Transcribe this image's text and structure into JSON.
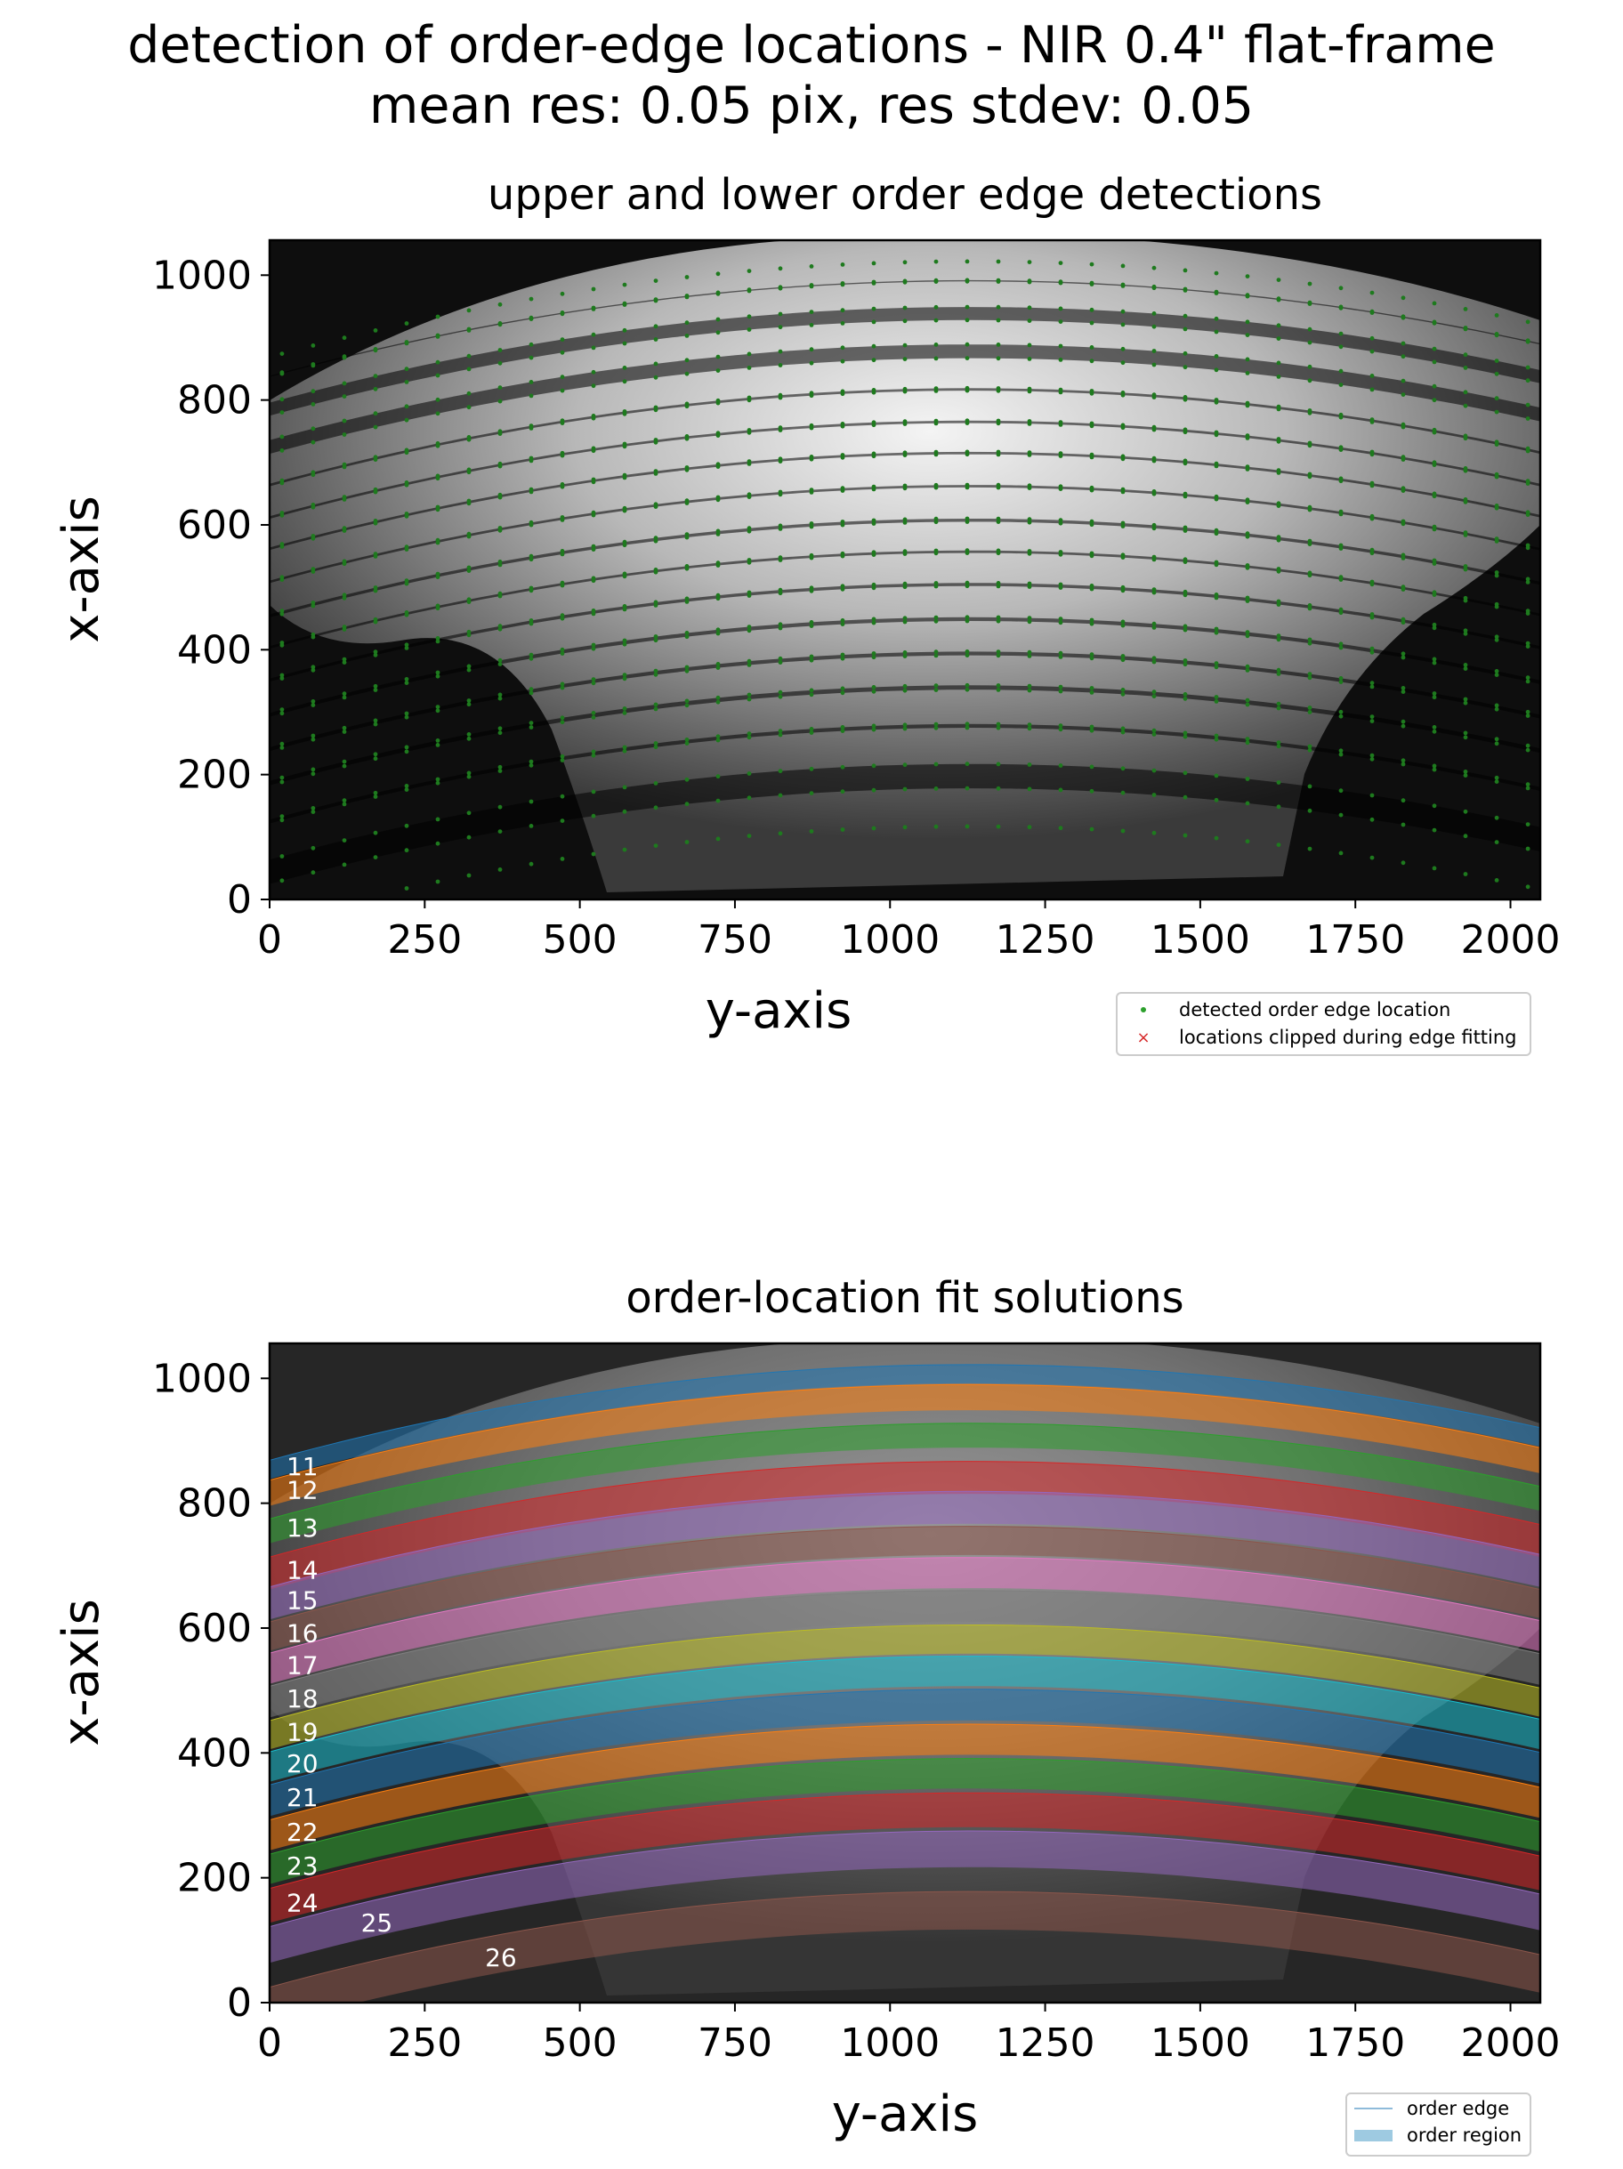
{
  "figure": {
    "title_line1": "detection of order-edge locations - NIR 0.4\" flat-frame",
    "title_line2": "mean res: 0.05 pix, res stdev: 0.05"
  },
  "chart_data": [
    {
      "type": "scatter",
      "title": "upper and lower order edge detections",
      "xlabel": "y-axis",
      "ylabel": "x-axis",
      "xlim": [
        0,
        2048
      ],
      "ylim": [
        0,
        1056
      ],
      "xticks": [
        "0",
        "250",
        "500",
        "750",
        "1000",
        "1250",
        "1500",
        "1750",
        "2000"
      ],
      "yticks": [
        "0",
        "200",
        "400",
        "600",
        "800",
        "1000"
      ],
      "background": "NIR flat-frame image (grey-scale)",
      "grid": false,
      "legend_position": "below-right",
      "legend": [
        {
          "label": "detected order edge location",
          "marker": "dot",
          "color": "#2ca02c"
        },
        {
          "label": "locations clipped during edge fitting",
          "marker": "x",
          "color": "#d62728"
        }
      ],
      "note": "detected points follow the upper and lower edges of every echelle order (orders 11-26); no clipped locations visible"
    },
    {
      "type": "area",
      "title": "order-location fit solutions",
      "xlabel": "y-axis",
      "ylabel": "x-axis",
      "xlim": [
        0,
        2048
      ],
      "ylim": [
        0,
        1056
      ],
      "xticks": [
        "0",
        "250",
        "500",
        "750",
        "1000",
        "1250",
        "1500",
        "1750",
        "2000"
      ],
      "yticks": [
        "0",
        "200",
        "400",
        "600",
        "800",
        "1000"
      ],
      "grid": false,
      "legend_position": "below-right",
      "legend": [
        {
          "label": "order edge",
          "marker": "line",
          "color": "#1f77b4"
        },
        {
          "label": "order region",
          "marker": "patch",
          "color": "#1f77b4"
        }
      ],
      "vertex_y": 1130,
      "vertex_sag": 0.00012,
      "orders": [
        {
          "order": "11",
          "upper": 1022,
          "lower": 992,
          "color": "#1f77b4"
        },
        {
          "order": "12",
          "upper": 990,
          "lower": 949,
          "color": "#ff7f0e"
        },
        {
          "order": "13",
          "upper": 928,
          "lower": 889,
          "color": "#2ca02c"
        },
        {
          "order": "14",
          "upper": 867,
          "lower": 815,
          "color": "#d62728"
        },
        {
          "order": "15",
          "upper": 819,
          "lower": 767,
          "color": "#9467bd"
        },
        {
          "order": "16",
          "upper": 763,
          "lower": 717,
          "color": "#8c564b"
        },
        {
          "order": "17",
          "upper": 713,
          "lower": 664,
          "color": "#e377c2"
        },
        {
          "order": "18",
          "upper": 660,
          "lower": 610,
          "color": "#7f7f7f"
        },
        {
          "order": "19",
          "upper": 605,
          "lower": 559,
          "color": "#bcbd22"
        },
        {
          "order": "20",
          "upper": 555,
          "lower": 507,
          "color": "#17becf"
        },
        {
          "order": "21",
          "upper": 502,
          "lower": 452,
          "color": "#1f77b4"
        },
        {
          "order": "22",
          "upper": 446,
          "lower": 397,
          "color": "#ff7f0e"
        },
        {
          "order": "23",
          "upper": 391,
          "lower": 343,
          "color": "#2ca02c"
        },
        {
          "order": "24",
          "upper": 336,
          "lower": 281,
          "color": "#d62728"
        },
        {
          "order": "25",
          "upper": 275,
          "lower": 217,
          "color": "#9467bd"
        },
        {
          "order": "26",
          "upper": 178,
          "lower": 117,
          "color": "#8c564b"
        }
      ]
    }
  ]
}
